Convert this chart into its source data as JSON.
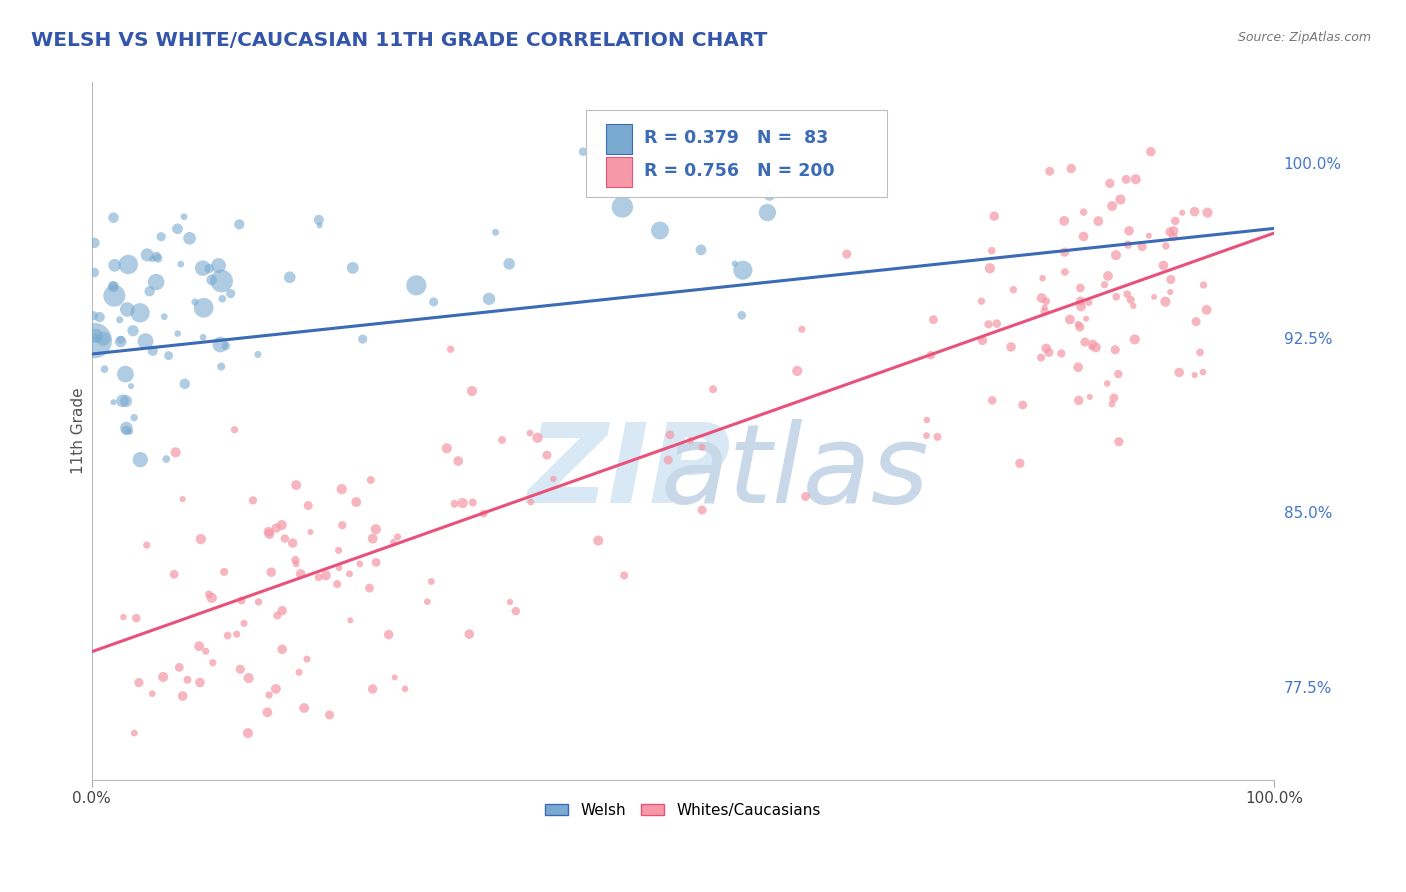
{
  "title": "WELSH VS WHITE/CAUCASIAN 11TH GRADE CORRELATION CHART",
  "source_text": "Source: ZipAtlas.com",
  "ylabel": "11th Grade",
  "xmin": 0.0,
  "xmax": 1.0,
  "ymin": 0.735,
  "ymax": 1.035,
  "y_tick_values_right": [
    0.775,
    0.85,
    0.925,
    1.0
  ],
  "y_tick_labels_right": [
    "77.5%",
    "85.0%",
    "92.5%",
    "100.0%"
  ],
  "legend_welsh_R": "0.379",
  "legend_welsh_N": "83",
  "legend_white_R": "0.756",
  "legend_white_N": "200",
  "legend_label_welsh": "Welsh",
  "legend_label_white": "Whites/Caucasians",
  "blue_color": "#7AAAD0",
  "pink_color": "#F599A8",
  "blue_line_color": "#3B6BB5",
  "pink_line_color": "#E8527A",
  "title_color": "#3355AA",
  "source_color": "#777777",
  "right_label_color": "#4477CC",
  "background_color": "#FFFFFF",
  "grid_color": "#CCCCCC",
  "welsh_line_x": [
    0.0,
    1.0
  ],
  "welsh_line_y": [
    0.918,
    0.972
  ],
  "white_line_x": [
    0.0,
    1.0
  ],
  "white_line_y": [
    0.79,
    0.97
  ]
}
